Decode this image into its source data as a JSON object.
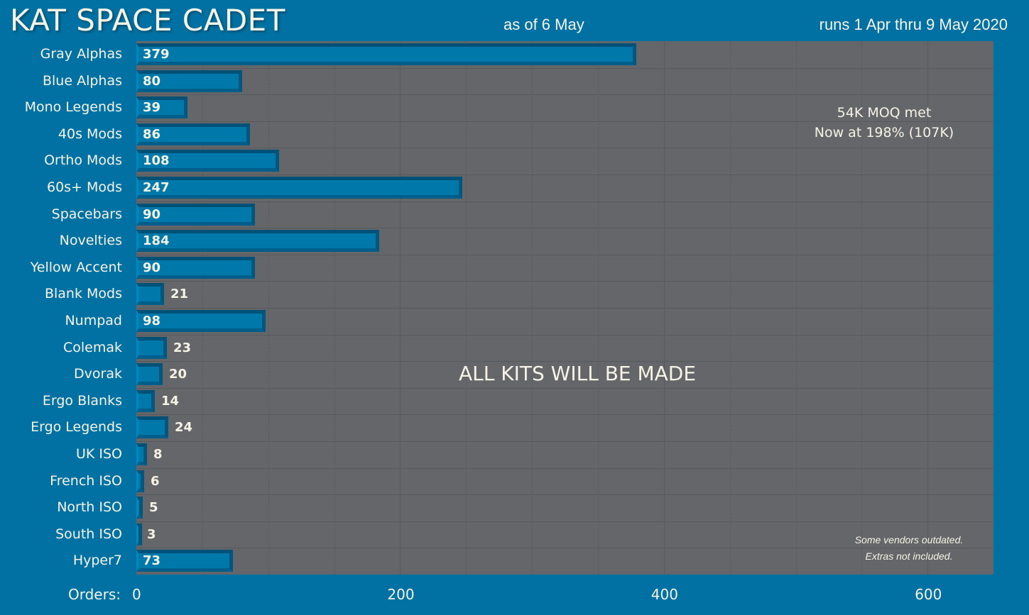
{
  "header": {
    "title": "KAT SPACE CADET",
    "as_of": "as of 6 May",
    "runs": "runs 1 Apr thru 9 May 2020"
  },
  "annotations": {
    "moq_line1": "54K MOQ met",
    "moq_line2": "Now at 198% (107K)",
    "all_kits": "ALL KITS WILL BE MADE",
    "note_line1": "Some vendors outdated.",
    "note_line2": "Extras not included."
  },
  "axis": {
    "x_label": "Orders:",
    "ticks": [
      "0",
      "200",
      "400",
      "600"
    ]
  },
  "colors": {
    "background": "#0071a2",
    "plot": "#646669",
    "bar": "#0079aa",
    "text": "#f6f3e6"
  },
  "chart_data": {
    "type": "bar",
    "orientation": "horizontal",
    "title": "KAT SPACE CADET",
    "subtitle": "as of 6 May — runs 1 Apr thru 9 May 2020",
    "xlabel": "Orders:",
    "ylabel": "",
    "xlim": [
      0,
      650
    ],
    "x_ticks": [
      0,
      200,
      400,
      600
    ],
    "grid": true,
    "categories": [
      "Gray Alphas",
      "Blue Alphas",
      "Mono Legends",
      "40s Mods",
      "Ortho Mods",
      "60s+ Mods",
      "Spacebars",
      "Novelties",
      "Yellow Accent",
      "Blank Mods",
      "Numpad",
      "Colemak",
      "Dvorak",
      "Ergo Blanks",
      "Ergo Legends",
      "UK ISO",
      "French ISO",
      "North ISO",
      "South ISO",
      "Hyper7"
    ],
    "values": [
      379,
      80,
      39,
      86,
      108,
      247,
      90,
      184,
      90,
      21,
      98,
      23,
      20,
      14,
      24,
      8,
      6,
      5,
      3,
      73
    ],
    "annotations": [
      "54K MOQ met",
      "Now at 198% (107K)",
      "ALL KITS WILL BE MADE",
      "Some vendors outdated.",
      "Extras not included."
    ]
  }
}
